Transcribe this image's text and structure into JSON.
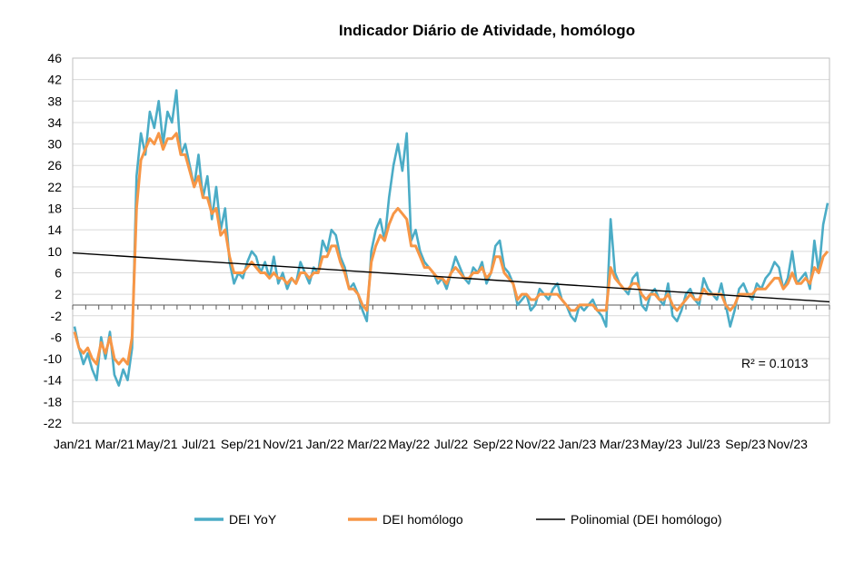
{
  "chart_data": {
    "type": "line",
    "title": "Indicador Diário de Atividade, homólogo",
    "xlabel": "",
    "ylabel": "",
    "ylim": [
      -22,
      46
    ],
    "yticks": [
      46,
      42,
      38,
      34,
      30,
      26,
      22,
      18,
      14,
      10,
      6,
      2,
      -2,
      -6,
      -10,
      -14,
      -18,
      -22
    ],
    "x_tick_labels": [
      "Jan/21",
      "Mar/21",
      "May/21",
      "Jul/21",
      "Sep/21",
      "Nov/21",
      "Jan/22",
      "Mar/22",
      "May/22",
      "Jul/22",
      "Sep/22",
      "Nov/22",
      "Jan/23",
      "Mar/23",
      "May/23",
      "Jul/23",
      "Sep/23",
      "Nov/23"
    ],
    "x_period": "Jan/21 – Dec/23 (daily, shown as approx. weekly points)",
    "grid": true,
    "legend_position": "bottom",
    "series": [
      {
        "name": "DEI YoY",
        "color": "#4bacc6",
        "values": [
          -4,
          -8,
          -11,
          -9,
          -12,
          -14,
          -6,
          -10,
          -5,
          -13,
          -15,
          -12,
          -14,
          -8,
          24,
          32,
          28,
          36,
          33,
          38,
          30,
          36,
          34,
          40,
          28,
          30,
          26,
          22,
          28,
          20,
          24,
          16,
          22,
          14,
          18,
          8,
          4,
          6,
          5,
          8,
          10,
          9,
          6,
          8,
          5,
          9,
          4,
          6,
          3,
          5,
          4,
          8,
          6,
          4,
          7,
          6,
          12,
          10,
          14,
          13,
          9,
          7,
          3,
          4,
          2,
          -1,
          -3,
          10,
          14,
          16,
          12,
          20,
          26,
          30,
          25,
          32,
          12,
          14,
          10,
          8,
          7,
          6,
          4,
          5,
          3,
          6,
          9,
          7,
          5,
          4,
          7,
          6,
          8,
          4,
          6,
          11,
          12,
          7,
          6,
          4,
          0,
          1,
          2,
          -1,
          0,
          3,
          2,
          1,
          3,
          4,
          1,
          0,
          -2,
          -3,
          0,
          -1,
          0,
          1,
          -1,
          -2,
          -4,
          16,
          6,
          4,
          3,
          2,
          5,
          6,
          0,
          -1,
          2,
          3,
          1,
          0,
          4,
          -2,
          -3,
          -1,
          2,
          3,
          1,
          0,
          5,
          3,
          2,
          1,
          4,
          0,
          -4,
          -1,
          3,
          4,
          2,
          1,
          4,
          3,
          5,
          6,
          8,
          7,
          3,
          5,
          10,
          4,
          5,
          6,
          3,
          12,
          6,
          15,
          19
        ]
      },
      {
        "name": "DEI homólogo",
        "color": "#f79646",
        "values": [
          -5,
          -8,
          -9,
          -8,
          -10,
          -11,
          -7,
          -9,
          -6,
          -10,
          -11,
          -10,
          -11,
          -6,
          18,
          27,
          29,
          31,
          30,
          32,
          29,
          31,
          31,
          32,
          28,
          28,
          25,
          22,
          24,
          20,
          20,
          17,
          18,
          13,
          14,
          9,
          6,
          6,
          6,
          7,
          8,
          7,
          6,
          6,
          5,
          6,
          5,
          5,
          4,
          5,
          4,
          6,
          6,
          5,
          6,
          6,
          9,
          9,
          11,
          11,
          8,
          6,
          3,
          3,
          2,
          0,
          -1,
          8,
          11,
          13,
          12,
          15,
          17,
          18,
          17,
          16,
          11,
          11,
          9,
          7,
          7,
          6,
          5,
          5,
          4,
          6,
          7,
          6,
          5,
          5,
          6,
          6,
          7,
          5,
          6,
          9,
          9,
          6,
          5,
          4,
          1,
          2,
          2,
          1,
          1,
          2,
          2,
          2,
          2,
          2,
          1,
          0,
          -1,
          -1,
          0,
          0,
          0,
          0,
          -1,
          -1,
          -1,
          7,
          5,
          4,
          3,
          3,
          4,
          4,
          2,
          1,
          2,
          2,
          1,
          1,
          2,
          0,
          -1,
          0,
          1,
          2,
          1,
          1,
          3,
          2,
          2,
          2,
          2,
          0,
          -1,
          0,
          2,
          2,
          2,
          2,
          3,
          3,
          3,
          4,
          5,
          5,
          3,
          4,
          6,
          4,
          4,
          5,
          4,
          7,
          6,
          9,
          10
        ]
      },
      {
        "name": "Polinomial (DEI homólogo)",
        "color": "#000000",
        "trend_start": 9.7,
        "trend_end": 0.6
      }
    ],
    "annotation": "R² = 0.1013"
  }
}
